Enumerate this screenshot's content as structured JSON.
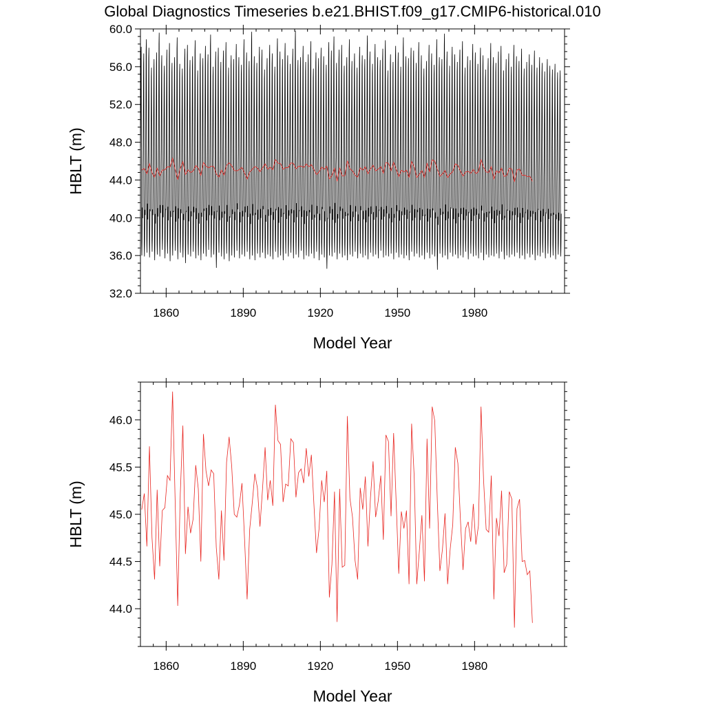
{
  "title": "Global Diagnostics Timeseries b.e21.BHIST.f09_g17.CMIP6-historical.010",
  "colors": {
    "monthly": "#000000",
    "annual": "#e8241f",
    "axes": "#000000"
  },
  "chart_data": [
    {
      "type": "line",
      "xlabel": "Model Year",
      "ylabel": "HBLT (m)",
      "xlim": [
        1850,
        2015
      ],
      "ylim": [
        32.0,
        60.0
      ],
      "xticks": [
        1860,
        1890,
        1920,
        1950,
        1980
      ],
      "xtick_labels": [
        "1860",
        "1890",
        "1920",
        "1950",
        "1980"
      ],
      "yticks": [
        32.0,
        36.0,
        40.0,
        44.0,
        48.0,
        52.0,
        56.0,
        60.0
      ],
      "ytick_labels": [
        "32.0",
        "36.0",
        "40.0",
        "44.0",
        "48.0",
        "52.0",
        "56.0",
        "60.0"
      ],
      "grid": false,
      "legend": "none",
      "series": [
        {
          "kind": "monthly",
          "description_of_cycle": "seasonal cycle each year: maximum about 56-60 m, minimum about 35-37 m, secondary peak 40-44 m",
          "annual_max": [
            58.1,
            57.4,
            58.9,
            58.0,
            55.9,
            56.8,
            57.5,
            59.6,
            57.2,
            56.1,
            57.8,
            58.5,
            56.4,
            57.0,
            59.1,
            56.3,
            55.8,
            57.9,
            58.3,
            56.7,
            57.1,
            58.8,
            55.6,
            57.4,
            56.9,
            58.2,
            57.3,
            59.4,
            56.0,
            57.6,
            58.0,
            56.5,
            57.7,
            58.6,
            55.9,
            57.2,
            56.8,
            58.4,
            57.0,
            56.2,
            58.9,
            57.5,
            56.6,
            59.7,
            57.1,
            56.4,
            58.1,
            57.8,
            55.7,
            56.9,
            58.3,
            57.4,
            56.0,
            59.0,
            57.6,
            56.8,
            58.5,
            57.2,
            56.3,
            57.9,
            59.8,
            56.7,
            57.0,
            58.2,
            56.5,
            57.3,
            58.7,
            55.8,
            57.5,
            56.9,
            58.0,
            57.1,
            56.2,
            58.6,
            57.7,
            59.2,
            56.4,
            57.8,
            58.3,
            56.1,
            57.0,
            58.9,
            56.6,
            57.4,
            55.9,
            58.1,
            57.2,
            56.8,
            59.3,
            57.6,
            56.3,
            58.4,
            57.0,
            56.7,
            57.9,
            58.8,
            55.6,
            57.3,
            56.5,
            58.2,
            57.5,
            56.0,
            59.1,
            57.1,
            56.9,
            58.0,
            57.7,
            56.4,
            58.6,
            57.2,
            55.8,
            56.6,
            58.3,
            57.4,
            56.2,
            58.9,
            57.0,
            56.8,
            59.5,
            57.6,
            56.1,
            58.1,
            57.3,
            56.5,
            57.8,
            58.7,
            55.9,
            57.1,
            56.7,
            58.4,
            57.5,
            56.3,
            58.0,
            57.2,
            55.7,
            56.9,
            58.5,
            57.0,
            56.4,
            57.6,
            58.2,
            55.6,
            56.8,
            57.4,
            56.0,
            58.3,
            57.1,
            56.6,
            57.9,
            55.8,
            56.5,
            57.3,
            56.2,
            57.7,
            55.9,
            57.0,
            56.4,
            55.5,
            56.8,
            56.1,
            55.7,
            56.3,
            55.4,
            55.6,
            55.0
          ],
          "annual_min": [
            36.0,
            35.9,
            36.3,
            35.8,
            36.4,
            35.5,
            36.1,
            35.9,
            36.6,
            35.7,
            36.2,
            35.4,
            36.0,
            36.5,
            35.6,
            36.3,
            35.8,
            35.2,
            36.1,
            35.9,
            36.4,
            35.7,
            36.0,
            35.5,
            36.2,
            35.9,
            36.6,
            35.8,
            36.1,
            34.7,
            36.3,
            35.9,
            35.6,
            36.2,
            35.4,
            36.0,
            35.8,
            36.5,
            35.7,
            36.1,
            35.9,
            36.4,
            35.6,
            36.0,
            35.5,
            36.2,
            35.8,
            36.3,
            35.7,
            36.1,
            35.9,
            35.6,
            36.4,
            35.8,
            36.0,
            35.5,
            36.2,
            35.9,
            36.3,
            35.7,
            36.1,
            35.8,
            36.5,
            35.6,
            36.0,
            35.9,
            36.2,
            35.7,
            36.4,
            35.5,
            36.1,
            35.8,
            34.6,
            36.0,
            35.9,
            36.3,
            35.6,
            36.2,
            35.8,
            36.0,
            35.5,
            36.1,
            35.9,
            36.4,
            35.7,
            36.2,
            35.8,
            36.0,
            35.6,
            36.3,
            35.9,
            36.1,
            35.7,
            36.5,
            35.8,
            36.0,
            35.9,
            36.2,
            35.6,
            36.3,
            35.8,
            36.1,
            35.7,
            36.0,
            35.5,
            36.4,
            35.9,
            36.2,
            35.8,
            36.0,
            35.6,
            36.3,
            35.7,
            36.1,
            35.9,
            34.5,
            36.2,
            35.8,
            36.0,
            35.6,
            36.3,
            35.9,
            36.1,
            35.7,
            36.0,
            35.8,
            36.4,
            35.6,
            36.2,
            35.9,
            36.0,
            35.7,
            36.3,
            35.5,
            36.1,
            35.8,
            36.0,
            35.9,
            36.2,
            35.7,
            36.4,
            35.6,
            36.0,
            35.8,
            36.1,
            35.9,
            36.3,
            35.7,
            36.0,
            35.6,
            36.2,
            35.8,
            36.1,
            35.5,
            36.0,
            35.9,
            36.3,
            35.7,
            36.2,
            35.8,
            36.0,
            35.6,
            36.1,
            35.9,
            36.5
          ],
          "annual_secondary": [
            41.5,
            42.0,
            41.2,
            42.6,
            41.8,
            40.9,
            41.7,
            42.3,
            41.4,
            42.8,
            41.1,
            41.9,
            42.4,
            40.8,
            41.6,
            42.1,
            41.3,
            42.7,
            41.0,
            41.8,
            42.2,
            41.5,
            40.7,
            41.9,
            42.5,
            41.2,
            41.7,
            42.0,
            41.4,
            42.9,
            41.1,
            41.6,
            42.3,
            40.9,
            41.8,
            42.1,
            41.3,
            42.6,
            41.0,
            41.7,
            42.4,
            41.5,
            40.8,
            41.9,
            42.2,
            41.2,
            41.6,
            42.7,
            41.1,
            41.8,
            42.0,
            41.4,
            42.5,
            40.9,
            41.7,
            42.3,
            41.3,
            41.9,
            42.1,
            41.0,
            41.6,
            42.6,
            41.5,
            40.8,
            41.8,
            42.4,
            41.2,
            41.7,
            42.0,
            41.4,
            42.8,
            41.1,
            41.9,
            42.2,
            41.3,
            40.7,
            41.6,
            42.5,
            41.5,
            41.8,
            42.1,
            41.0,
            41.7,
            42.3,
            41.2,
            42.6,
            41.4,
            40.9,
            41.9,
            42.0,
            41.3,
            41.6,
            42.7,
            41.1,
            41.8,
            42.2,
            41.5,
            40.8,
            41.7,
            42.4,
            41.2,
            41.9,
            42.1,
            41.4,
            42.5,
            41.0,
            41.6,
            42.3,
            41.3,
            41.8,
            42.0,
            40.9,
            41.7,
            42.6,
            41.5,
            41.1,
            41.9,
            42.2,
            41.2,
            41.6,
            42.8,
            41.4,
            40.7,
            41.8,
            42.1,
            41.3,
            41.7,
            42.4,
            41.0,
            41.9,
            42.0,
            41.5,
            42.5,
            41.2,
            41.6,
            42.3,
            41.4,
            40.8,
            41.8,
            42.2,
            41.1,
            41.7,
            42.6,
            41.3,
            41.9,
            42.0,
            41.5,
            40.9,
            41.6,
            42.4,
            41.2,
            41.8,
            42.1,
            41.4,
            42.7,
            41.0,
            41.7,
            42.3,
            41.3,
            41.9,
            42.0,
            41.5,
            41.1
          ]
        },
        {
          "kind": "annual",
          "x_start": 1850,
          "x_step": 1,
          "values": [
            45.05,
            45.22,
            44.66,
            45.72,
            44.75,
            44.31,
            45.26,
            44.45,
            45.04,
            45.07,
            45.41,
            45.36,
            46.3,
            45.14,
            44.03,
            45.22,
            45.94,
            44.58,
            45.08,
            44.8,
            44.95,
            45.52,
            45.27,
            44.5,
            45.85,
            45.46,
            45.3,
            45.47,
            45.43,
            44.65,
            44.31,
            45.04,
            44.51,
            45.55,
            45.82,
            45.51,
            45.0,
            44.97,
            45.1,
            45.33,
            44.74,
            44.1,
            44.84,
            45.12,
            45.43,
            45.28,
            44.87,
            45.27,
            45.71,
            45.15,
            45.36,
            45.09,
            46.16,
            45.78,
            45.74,
            45.13,
            45.32,
            45.3,
            45.8,
            45.76,
            45.18,
            45.44,
            45.48,
            45.33,
            45.7,
            45.4,
            45.63,
            45.1,
            44.59,
            44.85,
            45.36,
            45.13,
            45.46,
            44.12,
            44.47,
            45.24,
            43.86,
            45.27,
            44.44,
            44.46,
            46.04,
            45.17,
            44.97,
            44.51,
            44.31,
            45.28,
            45.05,
            45.4,
            44.66,
            45.18,
            45.56,
            44.97,
            45.14,
            45.41,
            44.73,
            45.84,
            45.77,
            44.98,
            45.86,
            45.12,
            44.37,
            45.03,
            44.85,
            45.04,
            44.26,
            45.96,
            45.4,
            44.26,
            44.61,
            44.99,
            44.29,
            45.8,
            44.85,
            46.14,
            45.99,
            45.14,
            44.4,
            44.63,
            45.01,
            44.26,
            44.63,
            44.89,
            45.71,
            45.54,
            44.94,
            44.41,
            44.85,
            44.92,
            44.71,
            45.11,
            44.68,
            44.88,
            46.14,
            45.36,
            44.84,
            44.81,
            45.41,
            44.1,
            44.96,
            44.77,
            45.25,
            44.38,
            44.47,
            45.24,
            45.16,
            43.8,
            45.06,
            45.16,
            44.5,
            44.51,
            44.36,
            44.4,
            43.85
          ]
        }
      ]
    },
    {
      "type": "line",
      "xlabel": "Model Year",
      "ylabel": "HBLT (m)",
      "xlim": [
        1850,
        2015
      ],
      "ylim": [
        43.6,
        46.4
      ],
      "xticks": [
        1860,
        1890,
        1920,
        1950,
        1980
      ],
      "xtick_labels": [
        "1860",
        "1890",
        "1920",
        "1950",
        "1980"
      ],
      "yticks": [
        44.0,
        44.5,
        45.0,
        45.5,
        46.0
      ],
      "ytick_labels": [
        "44.0",
        "44.5",
        "45.0",
        "45.5",
        "46.0"
      ],
      "grid": false,
      "legend": "none",
      "series": [
        {
          "kind": "annual",
          "source": "same as top panel annual series"
        }
      ]
    }
  ]
}
